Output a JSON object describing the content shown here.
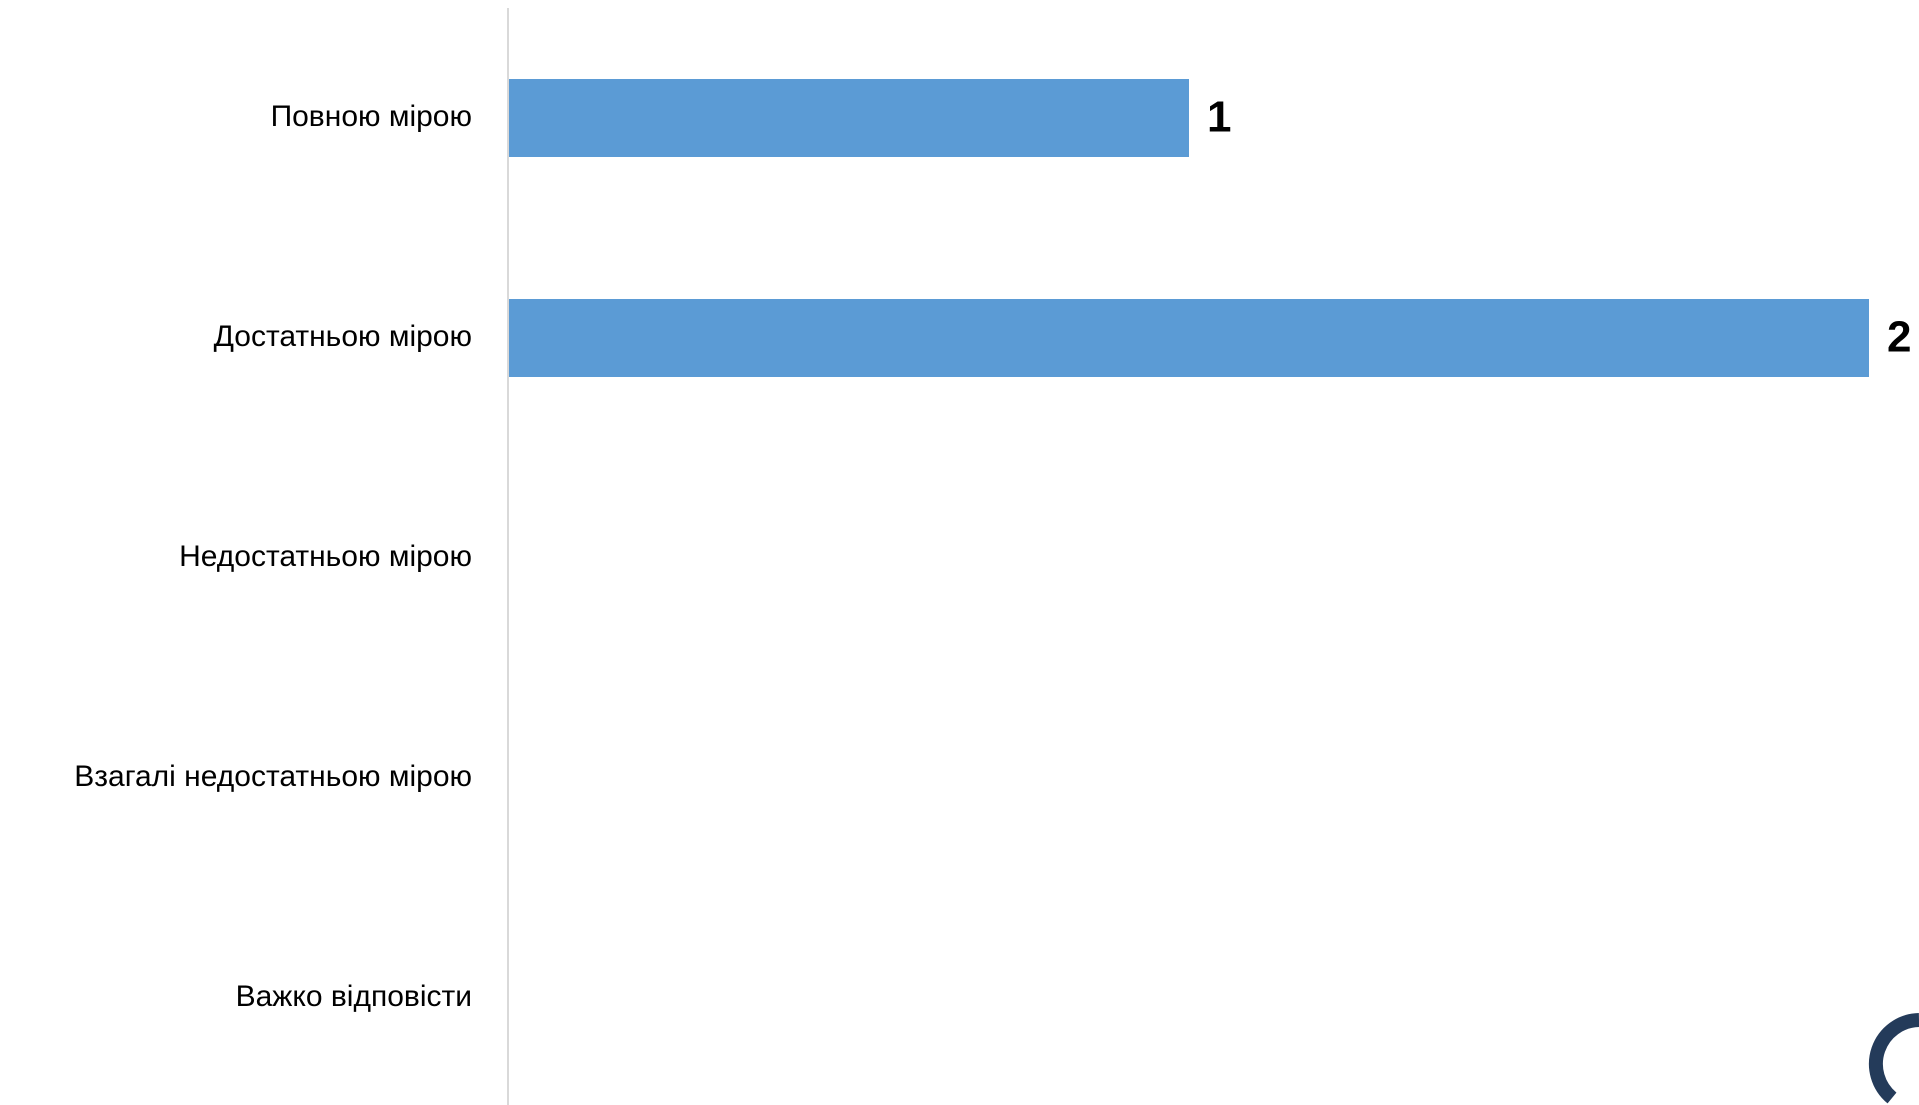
{
  "chart_data": {
    "type": "bar",
    "orientation": "horizontal",
    "categories": [
      "Повною мірою",
      "Достатньою мірою",
      "Недостатньою мірою",
      "Взагалі недостатньою мірою",
      "Важко відповісти"
    ],
    "values": [
      1,
      2,
      null,
      null,
      null
    ],
    "data_labels": [
      "1",
      "2",
      "",
      "",
      ""
    ],
    "title": "",
    "xlabel": "",
    "ylabel": "",
    "xlim": [
      0,
      2
    ],
    "grid": false,
    "legend": "none",
    "colors": {
      "bar": "#5B9BD5",
      "axis": "#D9D9D9",
      "text": "#000000"
    }
  }
}
